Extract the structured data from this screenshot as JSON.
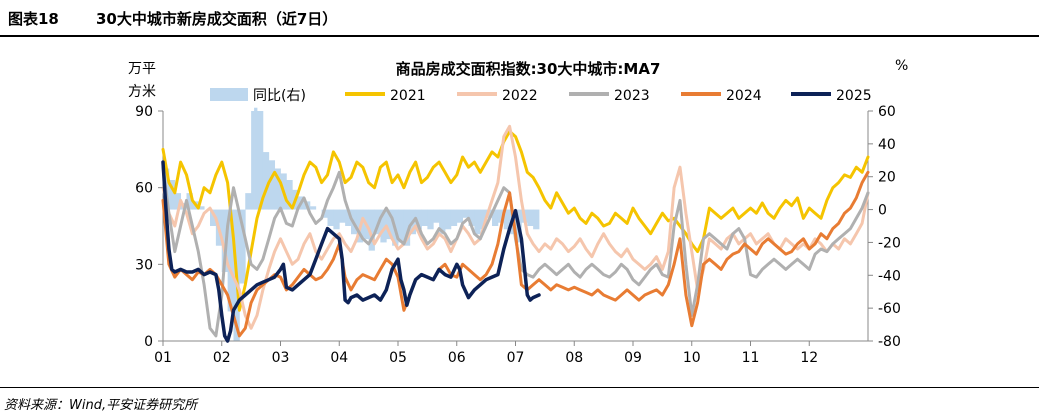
{
  "figure": {
    "number": "图表18",
    "title": "30大中城市新房成交面积（近7日）",
    "source": "资料来源：Wind,平安证券研究所"
  },
  "chart_data": {
    "type": "line",
    "title": "商品房成交面积指数:30大中城市:MA7",
    "ylabel_left_line1": "万平",
    "ylabel_left_line2": "方米",
    "ylabel_right": "%",
    "ylim_left": [
      0,
      90
    ],
    "yticks_left": [
      "0",
      "30",
      "60",
      "90"
    ],
    "ylim_right": [
      -80,
      60
    ],
    "yticks_right": [
      "60",
      "40",
      "20",
      "0",
      "-20",
      "-40",
      "-60",
      "-80"
    ],
    "xlim": [
      1,
      13
    ],
    "xticks": [
      "01",
      "02",
      "03",
      "04",
      "05",
      "06",
      "07",
      "08",
      "09",
      "10",
      "11",
      "12"
    ],
    "bar_series": {
      "name": "同比(右)",
      "color": "#bdd7ee",
      "x": [
        1.0,
        1.1,
        1.2,
        1.3,
        1.4,
        1.5,
        1.6,
        1.7,
        1.8,
        1.9,
        2.0,
        2.1,
        2.2,
        2.3,
        2.4,
        2.5,
        2.55,
        2.6,
        2.7,
        2.8,
        2.9,
        3.0,
        3.1,
        3.2,
        3.3,
        3.4,
        3.5,
        3.6,
        3.7,
        3.8,
        3.9,
        4.0,
        4.1,
        4.2,
        4.3,
        4.4,
        4.5,
        4.6,
        4.7,
        4.8,
        4.9,
        5.0,
        5.1,
        5.2,
        5.3,
        5.4,
        5.5,
        5.6,
        5.7,
        5.8,
        5.9,
        6.0,
        6.1,
        6.2,
        6.3,
        6.4,
        6.5,
        6.6,
        6.7,
        6.8,
        6.9,
        7.0,
        7.1,
        7.2,
        7.3,
        7.4
      ],
      "values": [
        25,
        18,
        10,
        4,
        10,
        5,
        2,
        0,
        -10,
        -22,
        -38,
        -62,
        -80,
        -45,
        10,
        60,
        62,
        60,
        35,
        30,
        25,
        22,
        18,
        12,
        8,
        5,
        2,
        0,
        -5,
        -10,
        -12,
        -8,
        -10,
        -15,
        -20,
        -18,
        -25,
        -15,
        -20,
        -18,
        -22,
        -20,
        -22,
        -15,
        -12,
        -10,
        -12,
        -8,
        -15,
        -12,
        -10,
        -8,
        -5,
        -10,
        -15,
        -12,
        -5,
        -10,
        -8,
        -12,
        -15,
        -20,
        -8,
        -10,
        -12,
        0
      ]
    },
    "series": [
      {
        "name": "2021",
        "color": "#f5c400",
        "width": 3,
        "x": [
          1.0,
          1.1,
          1.2,
          1.3,
          1.4,
          1.5,
          1.6,
          1.7,
          1.8,
          1.9,
          2.0,
          2.1,
          2.2,
          2.3,
          2.4,
          2.5,
          2.6,
          2.7,
          2.8,
          2.9,
          3.0,
          3.1,
          3.2,
          3.3,
          3.4,
          3.5,
          3.6,
          3.7,
          3.8,
          3.9,
          4.0,
          4.1,
          4.2,
          4.3,
          4.4,
          4.5,
          4.6,
          4.7,
          4.8,
          4.9,
          5.0,
          5.1,
          5.2,
          5.3,
          5.4,
          5.5,
          5.6,
          5.7,
          5.8,
          5.9,
          6.0,
          6.1,
          6.2,
          6.3,
          6.4,
          6.5,
          6.6,
          6.7,
          6.8,
          6.9,
          7.0,
          7.1,
          7.2,
          7.3,
          7.4,
          7.5,
          7.6,
          7.7,
          7.8,
          7.9,
          8.0,
          8.1,
          8.2,
          8.3,
          8.4,
          8.5,
          8.6,
          8.7,
          8.8,
          8.9,
          9.0,
          9.1,
          9.2,
          9.3,
          9.4,
          9.5,
          9.6,
          9.7,
          9.8,
          9.9,
          10.0,
          10.1,
          10.2,
          10.3,
          10.4,
          10.5,
          10.6,
          10.7,
          10.8,
          10.9,
          11.0,
          11.1,
          11.2,
          11.3,
          11.4,
          11.5,
          11.6,
          11.7,
          11.8,
          11.9,
          12.0,
          12.1,
          12.2,
          12.3,
          12.4,
          12.5,
          12.6,
          12.7,
          12.8,
          12.9,
          13.0
        ],
        "values": [
          75,
          62,
          58,
          70,
          65,
          55,
          52,
          60,
          58,
          65,
          70,
          62,
          40,
          12,
          22,
          35,
          48,
          56,
          62,
          66,
          62,
          55,
          52,
          58,
          65,
          70,
          68,
          62,
          65,
          74,
          70,
          62,
          64,
          70,
          68,
          62,
          60,
          68,
          70,
          62,
          65,
          60,
          66,
          70,
          62,
          64,
          68,
          70,
          66,
          62,
          65,
          72,
          68,
          70,
          66,
          70,
          74,
          72,
          78,
          82,
          80,
          74,
          66,
          64,
          60,
          55,
          52,
          58,
          54,
          50,
          52,
          48,
          46,
          50,
          48,
          45,
          46,
          50,
          48,
          46,
          52,
          48,
          45,
          42,
          46,
          50,
          47,
          48,
          45,
          42,
          38,
          35,
          40,
          52,
          50,
          48,
          50,
          52,
          48,
          50,
          52,
          50,
          54,
          50,
          48,
          52,
          55,
          53,
          56,
          48,
          52,
          50,
          48,
          55,
          60,
          62,
          65,
          64,
          68,
          66,
          72
        ]
      },
      {
        "name": "2022",
        "color": "#f5c6ad",
        "width": 3,
        "x": [
          1.0,
          1.1,
          1.2,
          1.3,
          1.4,
          1.5,
          1.6,
          1.7,
          1.8,
          1.9,
          2.0,
          2.1,
          2.2,
          2.3,
          2.4,
          2.5,
          2.6,
          2.7,
          2.8,
          2.9,
          3.0,
          3.1,
          3.2,
          3.3,
          3.4,
          3.5,
          3.6,
          3.7,
          3.8,
          3.9,
          4.0,
          4.1,
          4.2,
          4.3,
          4.4,
          4.5,
          4.6,
          4.7,
          4.8,
          4.9,
          5.0,
          5.1,
          5.2,
          5.3,
          5.4,
          5.5,
          5.6,
          5.7,
          5.8,
          5.9,
          6.0,
          6.1,
          6.2,
          6.3,
          6.4,
          6.5,
          6.6,
          6.7,
          6.8,
          6.9,
          7.0,
          7.1,
          7.2,
          7.3,
          7.4,
          7.5,
          7.6,
          7.7,
          7.8,
          7.9,
          8.0,
          8.1,
          8.2,
          8.3,
          8.4,
          8.5,
          8.6,
          8.7,
          8.8,
          8.9,
          9.0,
          9.1,
          9.2,
          9.3,
          9.4,
          9.5,
          9.6,
          9.7,
          9.8,
          9.9,
          10.0,
          10.1,
          10.2,
          10.3,
          10.4,
          10.5,
          10.6,
          10.7,
          10.8,
          10.9,
          11.0,
          11.1,
          11.2,
          11.3,
          11.4,
          11.5,
          11.6,
          11.7,
          11.8,
          11.9,
          12.0,
          12.1,
          12.2,
          12.3,
          12.4,
          12.5,
          12.6,
          12.7,
          12.8,
          12.9,
          13.0
        ],
        "values": [
          60,
          50,
          45,
          55,
          50,
          42,
          45,
          50,
          52,
          48,
          40,
          30,
          25,
          20,
          10,
          5,
          10,
          20,
          28,
          35,
          40,
          35,
          30,
          32,
          38,
          42,
          35,
          32,
          36,
          40,
          42,
          38,
          35,
          40,
          48,
          44,
          38,
          42,
          45,
          40,
          36,
          38,
          42,
          45,
          40,
          36,
          38,
          42,
          40,
          35,
          40,
          45,
          42,
          38,
          40,
          48,
          55,
          62,
          80,
          84,
          72,
          55,
          42,
          38,
          35,
          38,
          36,
          40,
          38,
          35,
          37,
          40,
          36,
          33,
          38,
          42,
          38,
          35,
          33,
          36,
          32,
          30,
          28,
          30,
          33,
          28,
          35,
          60,
          68,
          50,
          35,
          20,
          28,
          40,
          38,
          36,
          40,
          42,
          38,
          40,
          42,
          38,
          40,
          42,
          38,
          36,
          40,
          38,
          36,
          38,
          36,
          40,
          38,
          35,
          38,
          36,
          40,
          38,
          42,
          46,
          58
        ]
      },
      {
        "name": "2023",
        "color": "#b0b0b0",
        "width": 3,
        "x": [
          1.0,
          1.1,
          1.2,
          1.3,
          1.4,
          1.5,
          1.6,
          1.7,
          1.8,
          1.9,
          2.0,
          2.1,
          2.2,
          2.3,
          2.4,
          2.5,
          2.6,
          2.7,
          2.8,
          2.9,
          3.0,
          3.1,
          3.2,
          3.3,
          3.4,
          3.5,
          3.6,
          3.7,
          3.8,
          3.9,
          4.0,
          4.1,
          4.2,
          4.3,
          4.4,
          4.5,
          4.6,
          4.7,
          4.8,
          4.9,
          5.0,
          5.1,
          5.2,
          5.3,
          5.4,
          5.5,
          5.6,
          5.7,
          5.8,
          5.9,
          6.0,
          6.1,
          6.2,
          6.3,
          6.4,
          6.5,
          6.6,
          6.7,
          6.8,
          6.9,
          7.0,
          7.1,
          7.2,
          7.3,
          7.4,
          7.5,
          7.6,
          7.7,
          7.8,
          7.9,
          8.0,
          8.1,
          8.2,
          8.3,
          8.4,
          8.5,
          8.6,
          8.7,
          8.8,
          8.9,
          9.0,
          9.1,
          9.2,
          9.3,
          9.4,
          9.5,
          9.6,
          9.7,
          9.8,
          9.9,
          10.0,
          10.1,
          10.2,
          10.3,
          10.4,
          10.5,
          10.6,
          10.7,
          10.8,
          10.9,
          11.0,
          11.1,
          11.2,
          11.3,
          11.4,
          11.5,
          11.6,
          11.7,
          11.8,
          11.9,
          12.0,
          12.1,
          12.2,
          12.3,
          12.4,
          12.5,
          12.6,
          12.7,
          12.8,
          12.9,
          13.0
        ],
        "values": [
          68,
          50,
          35,
          45,
          55,
          45,
          35,
          22,
          5,
          2,
          18,
          45,
          60,
          50,
          40,
          30,
          28,
          32,
          40,
          48,
          52,
          46,
          45,
          52,
          56,
          50,
          46,
          48,
          55,
          60,
          66,
          55,
          48,
          44,
          40,
          38,
          42,
          48,
          52,
          48,
          40,
          38,
          45,
          48,
          42,
          38,
          40,
          44,
          42,
          38,
          40,
          46,
          48,
          42,
          40,
          45,
          50,
          55,
          60,
          58,
          40,
          28,
          26,
          25,
          28,
          30,
          28,
          26,
          28,
          30,
          27,
          25,
          28,
          30,
          28,
          26,
          25,
          27,
          30,
          28,
          24,
          22,
          25,
          28,
          30,
          26,
          25,
          45,
          55,
          30,
          10,
          22,
          40,
          42,
          40,
          38,
          36,
          42,
          44,
          40,
          26,
          25,
          28,
          30,
          32,
          30,
          28,
          30,
          32,
          30,
          28,
          34,
          36,
          35,
          38,
          40,
          42,
          44,
          48,
          52,
          58
        ]
      },
      {
        "name": "2024",
        "color": "#e87c33",
        "width": 3,
        "x": [
          1.0,
          1.1,
          1.2,
          1.3,
          1.4,
          1.5,
          1.6,
          1.7,
          1.8,
          1.9,
          2.0,
          2.1,
          2.2,
          2.3,
          2.4,
          2.5,
          2.6,
          2.7,
          2.8,
          2.9,
          3.0,
          3.1,
          3.2,
          3.3,
          3.4,
          3.5,
          3.6,
          3.7,
          3.8,
          3.9,
          4.0,
          4.1,
          4.2,
          4.3,
          4.4,
          4.5,
          4.6,
          4.7,
          4.8,
          4.9,
          5.0,
          5.1,
          5.2,
          5.3,
          5.4,
          5.5,
          5.6,
          5.7,
          5.8,
          5.9,
          6.0,
          6.1,
          6.2,
          6.3,
          6.4,
          6.5,
          6.6,
          6.7,
          6.8,
          6.9,
          7.0,
          7.1,
          7.2,
          7.3,
          7.4,
          7.5,
          7.6,
          7.7,
          7.8,
          7.9,
          8.0,
          8.1,
          8.2,
          8.3,
          8.4,
          8.5,
          8.6,
          8.7,
          8.8,
          8.9,
          9.0,
          9.1,
          9.2,
          9.3,
          9.4,
          9.5,
          9.6,
          9.7,
          9.8,
          9.9,
          10.0,
          10.1,
          10.2,
          10.3,
          10.4,
          10.5,
          10.6,
          10.7,
          10.8,
          10.9,
          11.0,
          11.1,
          11.2,
          11.3,
          11.4,
          11.5,
          11.6,
          11.7,
          11.8,
          11.9,
          12.0,
          12.1,
          12.2,
          12.3,
          12.4,
          12.5,
          12.6,
          12.7,
          12.8,
          12.9,
          13.0
        ],
        "values": [
          55,
          30,
          25,
          28,
          26,
          24,
          27,
          26,
          28,
          26,
          22,
          18,
          10,
          2,
          5,
          15,
          20,
          22,
          24,
          26,
          25,
          20,
          22,
          25,
          28,
          26,
          24,
          25,
          28,
          32,
          38,
          25,
          20,
          24,
          26,
          25,
          24,
          28,
          32,
          30,
          25,
          12,
          18,
          24,
          26,
          25,
          24,
          28,
          30,
          26,
          25,
          30,
          28,
          26,
          24,
          26,
          30,
          38,
          50,
          58,
          42,
          22,
          20,
          22,
          24,
          22,
          20,
          22,
          21,
          20,
          21,
          20,
          19,
          18,
          20,
          18,
          17,
          16,
          18,
          20,
          18,
          16,
          18,
          19,
          20,
          18,
          22,
          30,
          40,
          18,
          6,
          15,
          30,
          32,
          30,
          28,
          32,
          34,
          35,
          38,
          36,
          34,
          38,
          40,
          38,
          36,
          34,
          35,
          38,
          40,
          36,
          38,
          42,
          40,
          44,
          46,
          50,
          52,
          56,
          62,
          66
        ]
      },
      {
        "name": "2025",
        "color": "#0d2257",
        "width": 3.5,
        "x": [
          1.0,
          1.05,
          1.1,
          1.15,
          1.2,
          1.3,
          1.4,
          1.5,
          1.6,
          1.7,
          1.8,
          1.9,
          1.95,
          2.0,
          2.05,
          2.1,
          2.15,
          2.2,
          2.3,
          2.4,
          2.5,
          2.6,
          2.7,
          2.8,
          2.9,
          3.0,
          3.05,
          3.1,
          3.2,
          3.3,
          3.4,
          3.5,
          3.6,
          3.7,
          3.8,
          3.9,
          4.0,
          4.05,
          4.1,
          4.15,
          4.2,
          4.3,
          4.4,
          4.5,
          4.6,
          4.7,
          4.8,
          4.9,
          5.0,
          5.05,
          5.1,
          5.15,
          5.2,
          5.3,
          5.4,
          5.5,
          5.6,
          5.7,
          5.8,
          5.9,
          6.0,
          6.05,
          6.1,
          6.2,
          6.3,
          6.4,
          6.5,
          6.6,
          6.7,
          6.8,
          6.9,
          7.0,
          7.1,
          7.2,
          7.25,
          7.3,
          7.4
        ],
        "values": [
          70,
          52,
          36,
          28,
          27,
          28,
          27,
          27,
          28,
          26,
          27,
          26,
          20,
          10,
          2,
          0,
          4,
          12,
          16,
          18,
          20,
          22,
          23,
          24,
          25,
          28,
          30,
          21,
          20,
          22,
          24,
          26,
          32,
          38,
          44,
          42,
          40,
          32,
          16,
          15,
          17,
          18,
          16,
          17,
          18,
          16,
          20,
          28,
          32,
          24,
          20,
          14,
          18,
          24,
          26,
          25,
          24,
          28,
          26,
          25,
          30,
          28,
          22,
          17,
          20,
          22,
          24,
          25,
          26,
          36,
          44,
          51,
          40,
          18,
          16,
          17,
          18
        ]
      }
    ]
  }
}
